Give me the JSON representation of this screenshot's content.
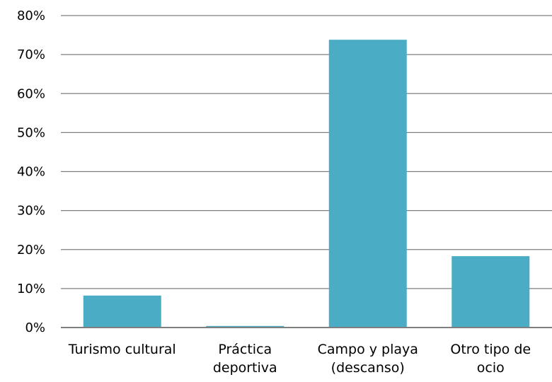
{
  "chart_data": {
    "type": "bar",
    "title": "",
    "xlabel": "",
    "ylabel": "",
    "categories": [
      [
        "Turismo cultural"
      ],
      [
        "Práctica",
        "deportiva"
      ],
      [
        "Campo y playa",
        "(descanso)"
      ],
      [
        "Otro tipo de",
        "ocio"
      ]
    ],
    "values": [
      8.2,
      0.4,
      73.8,
      18.3
    ],
    "value_format": "percent",
    "ylim": [
      0,
      80
    ],
    "yticks": [
      0,
      10,
      20,
      30,
      40,
      50,
      60,
      70,
      80
    ],
    "ytick_labels": [
      "0%",
      "10%",
      "20%",
      "30%",
      "40%",
      "50%",
      "60%",
      "70%",
      "80%"
    ],
    "grid": true,
    "legend": "none",
    "bar_color": "#4BACC6",
    "grid_color": "#7F7F7F"
  }
}
